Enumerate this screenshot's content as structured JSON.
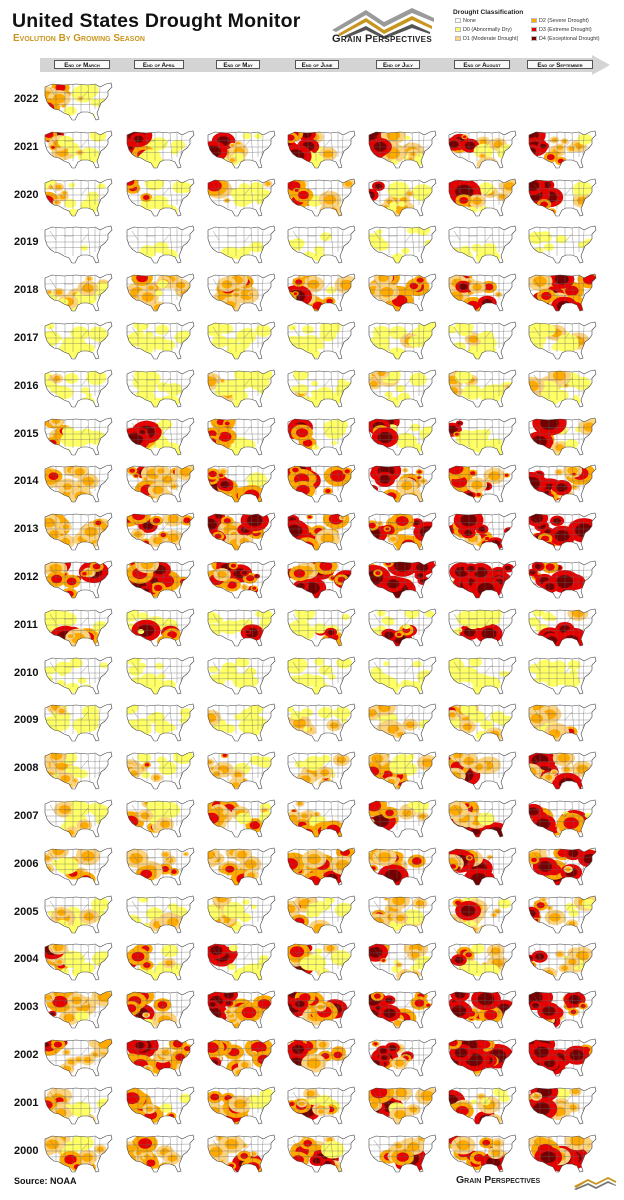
{
  "header": {
    "title": "United States Drought Monitor",
    "subtitle": "Evolution By Growing Season",
    "brand": "Grain Perspectives"
  },
  "legend": {
    "title": "Drought Classification",
    "items": [
      {
        "label": "None",
        "color": "#ffffff"
      },
      {
        "label": "D0 (Abnormally Dry)",
        "color": "#ffff66"
      },
      {
        "label": "D1 (Moderate Drought)",
        "color": "#fcd37f"
      },
      {
        "label": "D2 (Severe Drought)",
        "color": "#ffaa00"
      },
      {
        "label": "D3 (Extreme Drought)",
        "color": "#e60000"
      },
      {
        "label": "D4 (Exceptional Drought)",
        "color": "#730000"
      }
    ]
  },
  "months": [
    "End of March",
    "End of April",
    "End of May",
    "End of June",
    "End of July",
    "End of August",
    "End of September"
  ],
  "years": [
    {
      "label": "2022",
      "level": 0.55,
      "south": 0.5,
      "west": 0.85,
      "center": 0.4
    },
    {
      "label": "2021",
      "level": 0.55,
      "south": 0.35,
      "west": 0.95,
      "center": 0.3
    },
    {
      "label": "2020",
      "level": 0.4,
      "south": 0.35,
      "west": 0.7,
      "center": 0.3
    },
    {
      "label": "2019",
      "level": 0.12,
      "south": 0.15,
      "west": 0.1,
      "center": 0.1
    },
    {
      "label": "2018",
      "level": 0.45,
      "south": 0.55,
      "west": 0.6,
      "center": 0.5
    },
    {
      "label": "2017",
      "level": 0.25,
      "south": 0.2,
      "west": 0.2,
      "center": 0.3
    },
    {
      "label": "2016",
      "level": 0.3,
      "south": 0.25,
      "west": 0.4,
      "center": 0.3
    },
    {
      "label": "2015",
      "level": 0.4,
      "south": 0.2,
      "west": 0.85,
      "center": 0.2
    },
    {
      "label": "2014",
      "level": 0.5,
      "south": 0.55,
      "west": 0.85,
      "center": 0.5
    },
    {
      "label": "2013",
      "level": 0.6,
      "south": 0.6,
      "west": 0.75,
      "center": 0.7
    },
    {
      "label": "2012",
      "level": 0.75,
      "south": 0.7,
      "west": 0.7,
      "center": 0.9
    },
    {
      "label": "2011",
      "level": 0.45,
      "south": 0.95,
      "west": 0.15,
      "center": 0.2
    },
    {
      "label": "2010",
      "level": 0.2,
      "south": 0.25,
      "west": 0.2,
      "center": 0.1
    },
    {
      "label": "2009",
      "level": 0.3,
      "south": 0.4,
      "west": 0.4,
      "center": 0.2
    },
    {
      "label": "2008",
      "level": 0.45,
      "south": 0.5,
      "west": 0.55,
      "center": 0.3
    },
    {
      "label": "2007",
      "level": 0.5,
      "south": 0.55,
      "west": 0.6,
      "center": 0.3
    },
    {
      "label": "2006",
      "level": 0.55,
      "south": 0.65,
      "west": 0.5,
      "center": 0.5
    },
    {
      "label": "2005",
      "level": 0.4,
      "south": 0.35,
      "west": 0.55,
      "center": 0.3
    },
    {
      "label": "2004",
      "level": 0.5,
      "south": 0.25,
      "west": 0.8,
      "center": 0.3
    },
    {
      "label": "2003",
      "level": 0.6,
      "south": 0.45,
      "west": 0.85,
      "center": 0.6
    },
    {
      "label": "2002",
      "level": 0.65,
      "south": 0.5,
      "west": 0.85,
      "center": 0.6
    },
    {
      "label": "2001",
      "level": 0.5,
      "south": 0.6,
      "west": 0.6,
      "center": 0.3
    },
    {
      "label": "2000",
      "level": 0.55,
      "south": 0.7,
      "west": 0.5,
      "center": 0.4
    }
  ],
  "footer": {
    "source": "Source: NOAA",
    "brand": "Grain Perspectives"
  }
}
